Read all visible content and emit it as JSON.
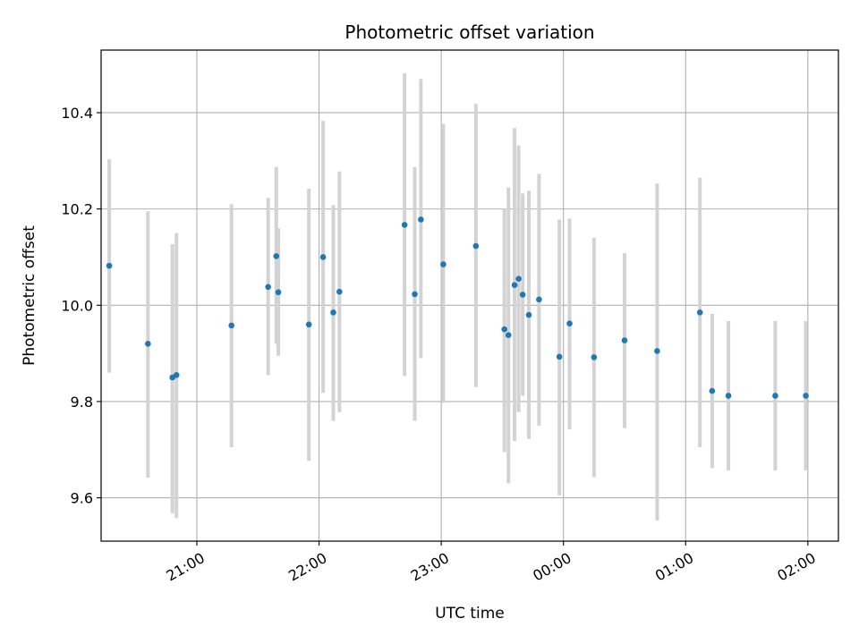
{
  "chart_data": {
    "type": "scatter",
    "title": "Photometric offset variation",
    "xlabel": "UTC time",
    "ylabel": "Photometric offset",
    "xlim": [
      "20:13",
      "02:15"
    ],
    "ylim": [
      9.51,
      10.53
    ],
    "grid": true,
    "x_ticks": [
      "21:00",
      "22:00",
      "23:00",
      "00:00",
      "01:00",
      "02:00"
    ],
    "y_ticks": [
      "9.6",
      "9.8",
      "10.0",
      "10.2",
      "10.4"
    ],
    "colors": {
      "point": "#1f77b4",
      "errorbar": "#d3d3d3",
      "grid": "#b0b0b0"
    },
    "points": [
      {
        "x": "20:17",
        "y": 10.082,
        "yerr_low": 9.86,
        "yerr_high": 10.303
      },
      {
        "x": "20:36",
        "y": 9.92,
        "yerr_low": 9.642,
        "yerr_high": 10.195
      },
      {
        "x": "20:48",
        "y": 9.85,
        "yerr_low": 9.568,
        "yerr_high": 10.127
      },
      {
        "x": "20:50",
        "y": 9.855,
        "yerr_low": 9.558,
        "yerr_high": 10.15
      },
      {
        "x": "21:17",
        "y": 9.958,
        "yerr_low": 9.705,
        "yerr_high": 10.21
      },
      {
        "x": "21:35",
        "y": 10.038,
        "yerr_low": 9.855,
        "yerr_high": 10.223
      },
      {
        "x": "21:39",
        "y": 10.102,
        "yerr_low": 9.92,
        "yerr_high": 10.287
      },
      {
        "x": "21:40",
        "y": 10.027,
        "yerr_low": 9.895,
        "yerr_high": 10.16
      },
      {
        "x": "21:55",
        "y": 9.96,
        "yerr_low": 9.677,
        "yerr_high": 10.242
      },
      {
        "x": "22:02",
        "y": 10.1,
        "yerr_low": 9.818,
        "yerr_high": 10.383
      },
      {
        "x": "22:07",
        "y": 9.985,
        "yerr_low": 9.76,
        "yerr_high": 10.208
      },
      {
        "x": "22:10",
        "y": 10.028,
        "yerr_low": 9.778,
        "yerr_high": 10.278
      },
      {
        "x": "22:42",
        "y": 10.167,
        "yerr_low": 9.853,
        "yerr_high": 10.482
      },
      {
        "x": "22:47",
        "y": 10.023,
        "yerr_low": 9.76,
        "yerr_high": 10.287
      },
      {
        "x": "22:50",
        "y": 10.178,
        "yerr_low": 9.89,
        "yerr_high": 10.47
      },
      {
        "x": "23:01",
        "y": 10.085,
        "yerr_low": 9.797,
        "yerr_high": 10.377
      },
      {
        "x": "23:17",
        "y": 10.123,
        "yerr_low": 9.83,
        "yerr_high": 10.418
      },
      {
        "x": "23:31",
        "y": 9.95,
        "yerr_low": 9.695,
        "yerr_high": 10.2
      },
      {
        "x": "23:33",
        "y": 9.938,
        "yerr_low": 9.63,
        "yerr_high": 10.245
      },
      {
        "x": "23:36",
        "y": 10.042,
        "yerr_low": 9.718,
        "yerr_high": 10.368
      },
      {
        "x": "23:38",
        "y": 10.055,
        "yerr_low": 9.778,
        "yerr_high": 10.332
      },
      {
        "x": "23:40",
        "y": 10.022,
        "yerr_low": 9.812,
        "yerr_high": 10.232
      },
      {
        "x": "23:43",
        "y": 9.98,
        "yerr_low": 9.722,
        "yerr_high": 10.238
      },
      {
        "x": "23:48",
        "y": 10.012,
        "yerr_low": 9.75,
        "yerr_high": 10.273
      },
      {
        "x": "23:58",
        "y": 9.893,
        "yerr_low": 9.605,
        "yerr_high": 10.178
      },
      {
        "x": "00:03",
        "y": 9.962,
        "yerr_low": 9.742,
        "yerr_high": 10.18
      },
      {
        "x": "00:15",
        "y": 9.892,
        "yerr_low": 9.643,
        "yerr_high": 10.14
      },
      {
        "x": "00:30",
        "y": 9.927,
        "yerr_low": 9.745,
        "yerr_high": 10.108
      },
      {
        "x": "00:46",
        "y": 9.905,
        "yerr_low": 9.553,
        "yerr_high": 10.253
      },
      {
        "x": "01:07",
        "y": 9.985,
        "yerr_low": 9.705,
        "yerr_high": 10.265
      },
      {
        "x": "01:13",
        "y": 9.822,
        "yerr_low": 9.662,
        "yerr_high": 9.982
      },
      {
        "x": "01:21",
        "y": 9.812,
        "yerr_low": 9.657,
        "yerr_high": 9.967
      },
      {
        "x": "01:44",
        "y": 9.812,
        "yerr_low": 9.657,
        "yerr_high": 9.967
      },
      {
        "x": "01:59",
        "y": 9.812,
        "yerr_low": 9.657,
        "yerr_high": 9.967
      }
    ]
  }
}
